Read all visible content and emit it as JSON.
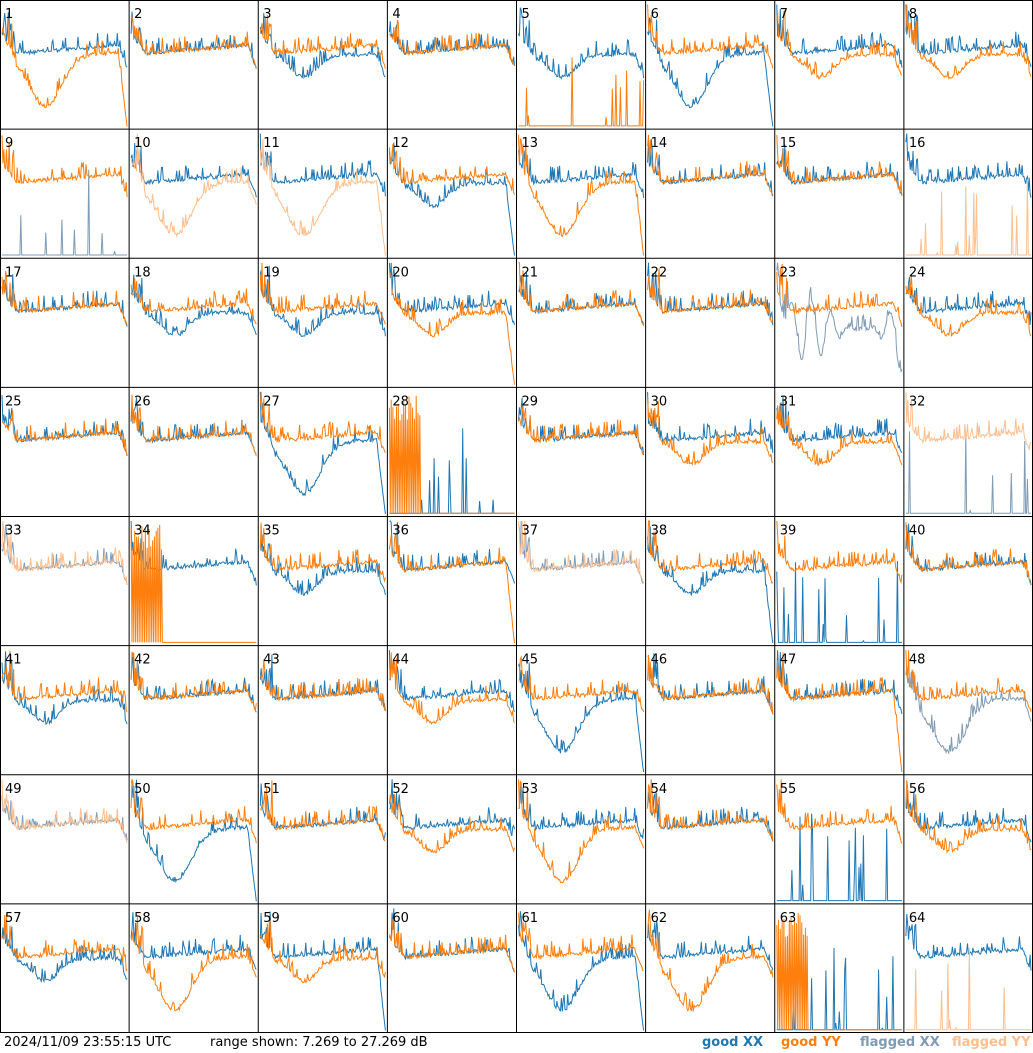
{
  "footer": {
    "timestamp": "2024/11/09 23:55:15 UTC",
    "range_text": "range shown: 7.269 to 27.269 dB"
  },
  "legend": {
    "good_xx": "good XX",
    "good_yy": "good YY",
    "flagged_xx": "flagged XX",
    "flagged_yy": "flagged YY"
  },
  "colors": {
    "good_xx": "#1f77b4",
    "good_yy": "#ff7f0e",
    "flagged_xx": "#7f9bb5",
    "flagged_yy": "#ffbf8f",
    "grid_line": "#000000"
  },
  "chart_data": {
    "type": "line",
    "panel_count": 64,
    "columns": 8,
    "rows": 8,
    "y_range_db": [
      7.269,
      27.269
    ],
    "series": [
      "XX",
      "YY"
    ],
    "panels": [
      {
        "id": 1,
        "xx": "good",
        "yy": "good",
        "xx_shape": "flat",
        "yy_shape": "sag",
        "yy_drop": true
      },
      {
        "id": 2,
        "xx": "good",
        "yy": "good",
        "xx_shape": "flat",
        "yy_shape": "flat"
      },
      {
        "id": 3,
        "xx": "good",
        "yy": "good",
        "xx_shape": "dip",
        "yy_shape": "flat"
      },
      {
        "id": 4,
        "xx": "good",
        "yy": "good",
        "xx_shape": "flat",
        "yy_shape": "flat"
      },
      {
        "id": 5,
        "xx": "good",
        "yy": "good",
        "xx_shape": "dip",
        "yy_shape": "dead"
      },
      {
        "id": 6,
        "xx": "good",
        "yy": "good",
        "xx_shape": "sag",
        "yy_shape": "flat",
        "xx_drop": true
      },
      {
        "id": 7,
        "xx": "good",
        "yy": "good",
        "xx_shape": "flat",
        "yy_shape": "dip"
      },
      {
        "id": 8,
        "xx": "good",
        "yy": "good",
        "xx_shape": "flat",
        "yy_shape": "dip"
      },
      {
        "id": 9,
        "xx": "flagged",
        "yy": "good",
        "xx_shape": "dead",
        "yy_shape": "flat"
      },
      {
        "id": 10,
        "xx": "good",
        "yy": "flagged",
        "xx_shape": "flat",
        "yy_shape": "sag"
      },
      {
        "id": 11,
        "xx": "good",
        "yy": "flagged",
        "xx_shape": "flat",
        "yy_shape": "sag",
        "yy_drop": true
      },
      {
        "id": 12,
        "xx": "good",
        "yy": "good",
        "xx_shape": "dip",
        "yy_shape": "flat",
        "xx_drop": true
      },
      {
        "id": 13,
        "xx": "good",
        "yy": "good",
        "xx_shape": "flat",
        "yy_shape": "sag",
        "yy_drop": true
      },
      {
        "id": 14,
        "xx": "good",
        "yy": "good",
        "xx_shape": "flat",
        "yy_shape": "flat"
      },
      {
        "id": 15,
        "xx": "good",
        "yy": "good",
        "xx_shape": "flat",
        "yy_shape": "flat"
      },
      {
        "id": 16,
        "xx": "good",
        "yy": "flagged",
        "xx_shape": "flat",
        "yy_shape": "dead"
      },
      {
        "id": 17,
        "xx": "good",
        "yy": "good",
        "xx_shape": "flat",
        "yy_shape": "flat"
      },
      {
        "id": 18,
        "xx": "good",
        "yy": "good",
        "xx_shape": "dip",
        "yy_shape": "flat"
      },
      {
        "id": 19,
        "xx": "good",
        "yy": "good",
        "xx_shape": "dip",
        "yy_shape": "flat"
      },
      {
        "id": 20,
        "xx": "good",
        "yy": "good",
        "xx_shape": "flat",
        "yy_shape": "dip",
        "yy_drop": true
      },
      {
        "id": 21,
        "xx": "good",
        "yy": "good",
        "xx_shape": "flat",
        "yy_shape": "flat"
      },
      {
        "id": 22,
        "xx": "good",
        "yy": "good",
        "xx_shape": "flat",
        "yy_shape": "flat"
      },
      {
        "id": 23,
        "xx": "flagged",
        "yy": "good",
        "xx_shape": "noisy",
        "yy_shape": "flat"
      },
      {
        "id": 24,
        "xx": "good",
        "yy": "good",
        "xx_shape": "flat",
        "yy_shape": "dip"
      },
      {
        "id": 25,
        "xx": "good",
        "yy": "good",
        "xx_shape": "flat",
        "yy_shape": "flat"
      },
      {
        "id": 26,
        "xx": "good",
        "yy": "good",
        "xx_shape": "flat",
        "yy_shape": "flat"
      },
      {
        "id": 27,
        "xx": "good",
        "yy": "good",
        "xx_shape": "sag",
        "yy_shape": "flat",
        "xx_drop": true
      },
      {
        "id": 28,
        "xx": "good",
        "yy": "good",
        "xx_shape": "dead",
        "yy_shape": "spiky"
      },
      {
        "id": 29,
        "xx": "good",
        "yy": "good",
        "xx_shape": "flat",
        "yy_shape": "flat"
      },
      {
        "id": 30,
        "xx": "good",
        "yy": "good",
        "xx_shape": "flat",
        "yy_shape": "dip"
      },
      {
        "id": 31,
        "xx": "good",
        "yy": "good",
        "xx_shape": "flat",
        "yy_shape": "dip"
      },
      {
        "id": 32,
        "xx": "flagged",
        "yy": "flagged",
        "xx_shape": "dead",
        "yy_shape": "flat"
      },
      {
        "id": 33,
        "xx": "flagged",
        "yy": "flagged",
        "xx_shape": "flat",
        "yy_shape": "flat"
      },
      {
        "id": 34,
        "xx": "good",
        "yy": "good",
        "xx_shape": "flat",
        "yy_shape": "spiky"
      },
      {
        "id": 35,
        "xx": "good",
        "yy": "good",
        "xx_shape": "dip",
        "yy_shape": "flat"
      },
      {
        "id": 36,
        "xx": "good",
        "yy": "good",
        "xx_shape": "flat",
        "yy_shape": "flat",
        "yy_drop": true
      },
      {
        "id": 37,
        "xx": "flagged",
        "yy": "flagged",
        "xx_shape": "flat",
        "yy_shape": "flat"
      },
      {
        "id": 38,
        "xx": "good",
        "yy": "good",
        "xx_shape": "dip",
        "yy_shape": "flat",
        "xx_drop": true
      },
      {
        "id": 39,
        "xx": "good",
        "yy": "good",
        "xx_shape": "dead",
        "yy_shape": "flat"
      },
      {
        "id": 40,
        "xx": "good",
        "yy": "good",
        "xx_shape": "flat",
        "yy_shape": "flat"
      },
      {
        "id": 41,
        "xx": "good",
        "yy": "good",
        "xx_shape": "dip",
        "yy_shape": "flat"
      },
      {
        "id": 42,
        "xx": "good",
        "yy": "good",
        "xx_shape": "flat",
        "yy_shape": "flat"
      },
      {
        "id": 43,
        "xx": "good",
        "yy": "good",
        "xx_shape": "flat",
        "yy_shape": "flat"
      },
      {
        "id": 44,
        "xx": "good",
        "yy": "good",
        "xx_shape": "flat",
        "yy_shape": "dip"
      },
      {
        "id": 45,
        "xx": "good",
        "yy": "good",
        "xx_shape": "sag",
        "yy_shape": "flat",
        "xx_drop": true
      },
      {
        "id": 46,
        "xx": "good",
        "yy": "good",
        "xx_shape": "flat",
        "yy_shape": "flat"
      },
      {
        "id": 47,
        "xx": "good",
        "yy": "good",
        "xx_shape": "flat",
        "yy_shape": "flat",
        "yy_drop": true
      },
      {
        "id": 48,
        "xx": "flagged",
        "yy": "good",
        "xx_shape": "sag",
        "yy_shape": "flat"
      },
      {
        "id": 49,
        "xx": "flagged",
        "yy": "flagged",
        "xx_shape": "flat",
        "yy_shape": "flat"
      },
      {
        "id": 50,
        "xx": "good",
        "yy": "good",
        "xx_shape": "sag",
        "yy_shape": "flat",
        "xx_drop": true
      },
      {
        "id": 51,
        "xx": "good",
        "yy": "good",
        "xx_shape": "flat",
        "yy_shape": "flat"
      },
      {
        "id": 52,
        "xx": "good",
        "yy": "good",
        "xx_shape": "flat",
        "yy_shape": "dip"
      },
      {
        "id": 53,
        "xx": "good",
        "yy": "good",
        "xx_shape": "flat",
        "yy_shape": "sag"
      },
      {
        "id": 54,
        "xx": "good",
        "yy": "good",
        "xx_shape": "flat",
        "yy_shape": "flat"
      },
      {
        "id": 55,
        "xx": "good",
        "yy": "good",
        "xx_shape": "dead",
        "yy_shape": "flat"
      },
      {
        "id": 56,
        "xx": "good",
        "yy": "good",
        "xx_shape": "flat",
        "yy_shape": "dip"
      },
      {
        "id": 57,
        "xx": "good",
        "yy": "good",
        "xx_shape": "dip",
        "yy_shape": "flat"
      },
      {
        "id": 58,
        "xx": "good",
        "yy": "good",
        "xx_shape": "flat",
        "yy_shape": "sag"
      },
      {
        "id": 59,
        "xx": "good",
        "yy": "good",
        "xx_shape": "flat",
        "yy_shape": "dip",
        "xx_drop": true
      },
      {
        "id": 60,
        "xx": "good",
        "yy": "good",
        "xx_shape": "flat",
        "yy_shape": "flat"
      },
      {
        "id": 61,
        "xx": "good",
        "yy": "good",
        "xx_shape": "sag",
        "yy_shape": "flat",
        "xx_drop": true
      },
      {
        "id": 62,
        "xx": "good",
        "yy": "good",
        "xx_shape": "flat",
        "yy_shape": "sag"
      },
      {
        "id": 63,
        "xx": "good",
        "yy": "good",
        "xx_shape": "dead",
        "yy_shape": "spiky"
      },
      {
        "id": 64,
        "xx": "good",
        "yy": "flagged",
        "xx_shape": "flat",
        "yy_shape": "dead"
      }
    ]
  }
}
